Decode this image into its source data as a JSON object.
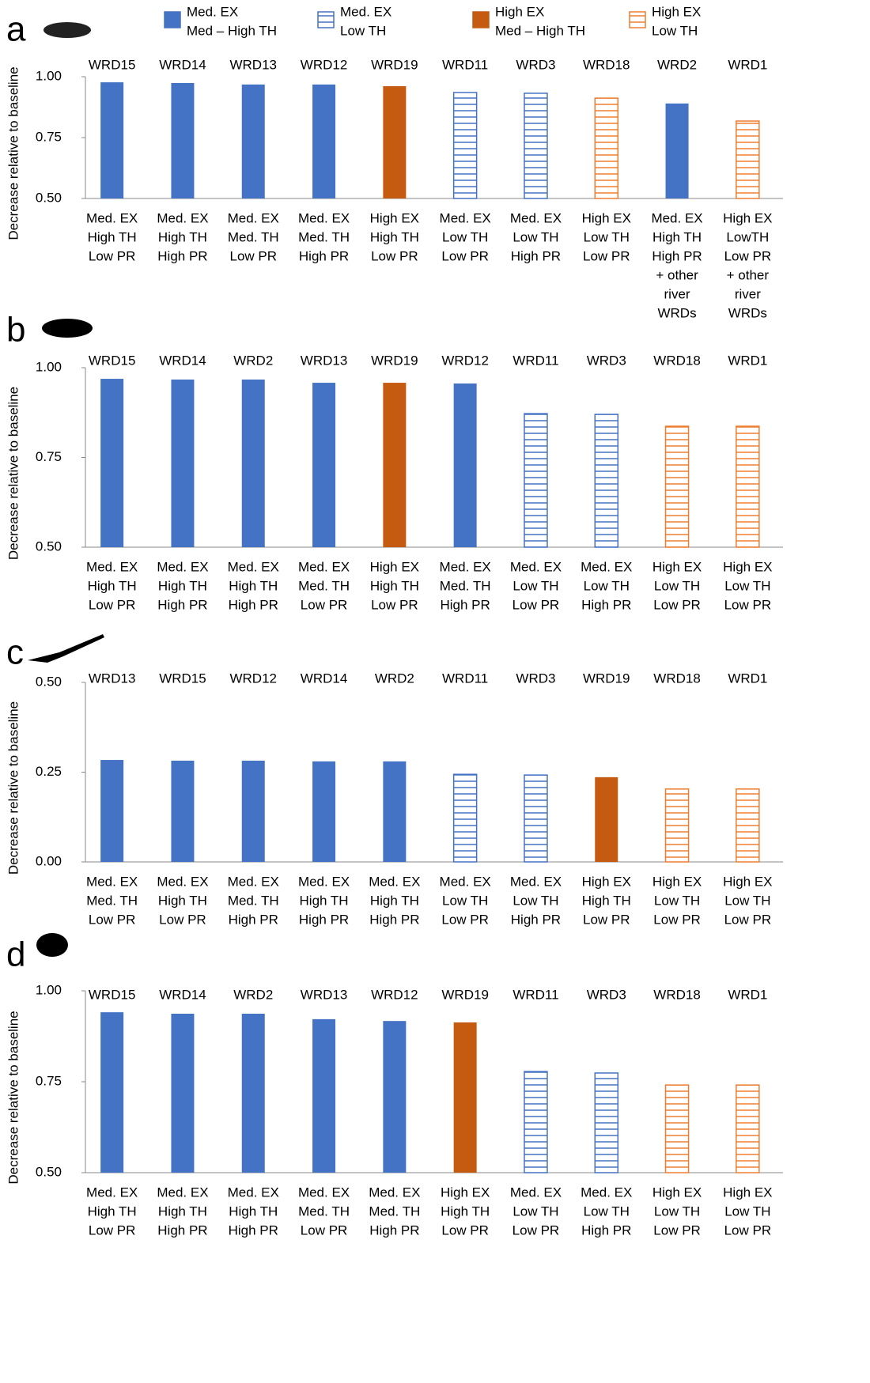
{
  "legend": [
    {
      "lines": [
        "Med. EX",
        "Med – High TH"
      ],
      "color": "#4472c4",
      "hatched": false
    },
    {
      "lines": [
        "Med. EX",
        "Low TH"
      ],
      "color": "#4472c4",
      "hatched": true
    },
    {
      "lines": [
        "High EX",
        "Med – High TH"
      ],
      "color": "#c55a11",
      "hatched": false
    },
    {
      "lines": [
        "High EX",
        "Low TH"
      ],
      "color": "#ed7d31",
      "hatched": true
    }
  ],
  "chart_data": [
    {
      "type": "bar",
      "panel": "a",
      "y_label": "Decrease relative to baseline",
      "categories": [
        "WRD15",
        "WRD14",
        "WRD13",
        "WRD12",
        "WRD19",
        "WRD11",
        "WRD3",
        "WRD18",
        "WRD2",
        "WRD1"
      ],
      "scenarios": [
        [
          "Med. EX",
          "High TH",
          "Low PR"
        ],
        [
          "Med. EX",
          "High TH",
          "High PR"
        ],
        [
          "Med. EX",
          "Med. TH",
          "Low PR"
        ],
        [
          "Med. EX",
          "Med. TH",
          "High PR"
        ],
        [
          "High EX",
          "High TH",
          "Low PR"
        ],
        [
          "Med. EX",
          "Low TH",
          "Low PR"
        ],
        [
          "Med. EX",
          "Low TH",
          "High PR"
        ],
        [
          "High EX",
          "Low TH",
          "Low PR"
        ],
        [
          "Med. EX",
          "High TH",
          "High PR",
          "+ other",
          "river",
          "WRDs"
        ],
        [
          "High EX",
          "LowTH",
          "Low PR",
          "+ other",
          "river",
          "WRDs"
        ]
      ],
      "values": [
        0.977,
        0.974,
        0.968,
        0.968,
        0.961,
        0.935,
        0.932,
        0.912,
        0.89,
        0.818
      ],
      "groups": [
        0,
        0,
        0,
        0,
        2,
        1,
        1,
        3,
        0,
        3
      ],
      "ylim": [
        0.5,
        1
      ],
      "yticks": [
        {
          "value": 0.5,
          "label": "0.50"
        },
        0.75,
        {
          "value": 1,
          "label": "1.00"
        }
      ]
    },
    {
      "type": "bar",
      "panel": "b",
      "y_label": "Decrease relative to baseline",
      "categories": [
        "WRD15",
        "WRD14",
        "WRD2",
        "WRD13",
        "WRD19",
        "WRD12",
        "WRD11",
        "WRD3",
        "WRD18",
        "WRD1"
      ],
      "scenarios": [
        [
          "Med. EX",
          "High TH",
          "Low PR"
        ],
        [
          "Med. EX",
          "High TH",
          "High PR"
        ],
        [
          "Med. EX",
          "High TH",
          "High PR"
        ],
        [
          "Med. EX",
          "Med. TH",
          "Low PR"
        ],
        [
          "High EX",
          "High TH",
          "Low PR"
        ],
        [
          "Med. EX",
          "Med. TH",
          "High PR"
        ],
        [
          "Med. EX",
          "Low TH",
          "Low PR"
        ],
        [
          "Med. EX",
          "Low TH",
          "High PR"
        ],
        [
          "High EX",
          "Low TH",
          "Low PR"
        ],
        [
          "High EX",
          "Low TH",
          "Low PR"
        ]
      ],
      "values": [
        0.969,
        0.967,
        0.967,
        0.958,
        0.958,
        0.956,
        0.872,
        0.87,
        0.837,
        0.837
      ],
      "groups": [
        0,
        0,
        0,
        0,
        2,
        0,
        1,
        1,
        3,
        3
      ],
      "ylim": [
        0.5,
        1
      ],
      "yticks": [
        {
          "value": 0.5,
          "label": "0.50"
        },
        0.75,
        {
          "value": 1,
          "label": "1.00"
        }
      ]
    },
    {
      "type": "bar",
      "panel": "c",
      "y_label": "Decrease relative to baseline",
      "categories": [
        "WRD13",
        "WRD15",
        "WRD12",
        "WRD14",
        "WRD2",
        "WRD11",
        "WRD3",
        "WRD19",
        "WRD18",
        "WRD1"
      ],
      "scenarios": [
        [
          "Med. EX",
          "Med. TH",
          "Low PR"
        ],
        [
          "Med. EX",
          "High TH",
          "Low PR"
        ],
        [
          "Med. EX",
          "Med. TH",
          "High PR"
        ],
        [
          "Med. EX",
          "High TH",
          "High PR"
        ],
        [
          "Med. EX",
          "High TH",
          "High PR"
        ],
        [
          "Med. EX",
          "Low TH",
          "Low PR"
        ],
        [
          "Med. EX",
          "Low TH",
          "High PR"
        ],
        [
          "High EX",
          "High TH",
          "Low PR"
        ],
        [
          "High EX",
          "Low TH",
          "Low PR"
        ],
        [
          "High EX",
          "Low TH",
          "Low PR"
        ]
      ],
      "values": [
        0.284,
        0.282,
        0.282,
        0.28,
        0.28,
        0.244,
        0.242,
        0.236,
        0.203,
        0.203
      ],
      "groups": [
        0,
        0,
        0,
        0,
        0,
        1,
        1,
        2,
        3,
        3
      ],
      "ylim": [
        0,
        0.5
      ],
      "yticks": [
        {
          "value": 0,
          "label": "0.00"
        },
        0.25,
        {
          "value": 0.5,
          "label": "0.50"
        }
      ]
    },
    {
      "type": "bar",
      "panel": "d",
      "y_label": "Decrease relative to baseline",
      "categories": [
        "WRD15",
        "WRD14",
        "WRD2",
        "WRD13",
        "WRD12",
        "WRD19",
        "WRD11",
        "WRD3",
        "WRD18",
        "WRD1"
      ],
      "scenarios": [
        [
          "Med. EX",
          "High TH",
          "Low PR"
        ],
        [
          "Med. EX",
          "High TH",
          "High PR"
        ],
        [
          "Med. EX",
          "High TH",
          "High PR"
        ],
        [
          "Med. EX",
          "Med. TH",
          "Low PR"
        ],
        [
          "Med. EX",
          "Med. TH",
          "High PR"
        ],
        [
          "High EX",
          "High TH",
          "Low PR"
        ],
        [
          "Med. EX",
          "Low TH",
          "Low PR"
        ],
        [
          "Med. EX",
          "Low TH",
          "High PR"
        ],
        [
          "High EX",
          "Low TH",
          "Low PR"
        ],
        [
          "High EX",
          "Low TH",
          "Low PR"
        ]
      ],
      "values": [
        0.941,
        0.937,
        0.937,
        0.922,
        0.917,
        0.913,
        0.778,
        0.774,
        0.741,
        0.741
      ],
      "groups": [
        0,
        0,
        0,
        0,
        0,
        2,
        1,
        1,
        3,
        3
      ],
      "ylim": [
        0.5,
        1
      ],
      "yticks": [
        {
          "value": 0.5,
          "label": "0.50"
        },
        0.75,
        {
          "value": 1,
          "label": "1.00"
        }
      ]
    }
  ]
}
